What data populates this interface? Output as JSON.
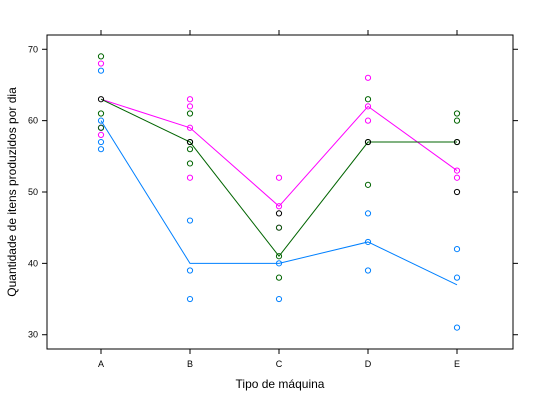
{
  "chart_data": {
    "type": "scatter",
    "title": "",
    "xlabel": "Tipo de máquina",
    "ylabel": "Quantidade de itens produzidos por dia",
    "categories": [
      "A",
      "B",
      "C",
      "D",
      "E"
    ],
    "ylim": [
      28,
      72
    ],
    "yticks": [
      30,
      40,
      50,
      60,
      70
    ],
    "grid": false,
    "legend": "none",
    "series": [
      {
        "color": "#0080ff",
        "points": [
          [
            0,
            67
          ],
          [
            0,
            60
          ],
          [
            0,
            59
          ],
          [
            0,
            57
          ],
          [
            0,
            56
          ],
          [
            1,
            46
          ],
          [
            1,
            39
          ],
          [
            1,
            35
          ],
          [
            2,
            40
          ],
          [
            2,
            35
          ],
          [
            3,
            47
          ],
          [
            3,
            43
          ],
          [
            3,
            39
          ],
          [
            4,
            42
          ],
          [
            4,
            38
          ],
          [
            4,
            31
          ]
        ],
        "line": [
          60,
          40,
          40,
          43,
          37
        ]
      },
      {
        "color": "#ff00ff",
        "points": [
          [
            0,
            68
          ],
          [
            0,
            59
          ],
          [
            0,
            58
          ],
          [
            1,
            63
          ],
          [
            1,
            62
          ],
          [
            1,
            59
          ],
          [
            1,
            52
          ],
          [
            2,
            52
          ],
          [
            2,
            48
          ],
          [
            2,
            45
          ],
          [
            3,
            66
          ],
          [
            3,
            62
          ],
          [
            3,
            60
          ],
          [
            4,
            53
          ],
          [
            4,
            52
          ]
        ],
        "line": [
          63,
          59,
          48,
          62,
          53
        ]
      },
      {
        "color": "#006400",
        "points": [
          [
            0,
            69
          ],
          [
            0,
            61
          ],
          [
            0,
            59
          ],
          [
            1,
            61
          ],
          [
            1,
            57
          ],
          [
            1,
            56
          ],
          [
            1,
            54
          ],
          [
            2,
            45
          ],
          [
            2,
            41
          ],
          [
            2,
            38
          ],
          [
            3,
            63
          ],
          [
            3,
            57
          ],
          [
            3,
            51
          ],
          [
            4,
            61
          ],
          [
            4,
            60
          ],
          [
            4,
            57
          ]
        ],
        "line": [
          63,
          57,
          41,
          57,
          57
        ]
      },
      {
        "color": "#000000",
        "points": [
          [
            0,
            63
          ],
          [
            1,
            57
          ],
          [
            2,
            47
          ],
          [
            3,
            57
          ],
          [
            4,
            57
          ],
          [
            4,
            50
          ]
        ],
        "line": []
      }
    ]
  }
}
